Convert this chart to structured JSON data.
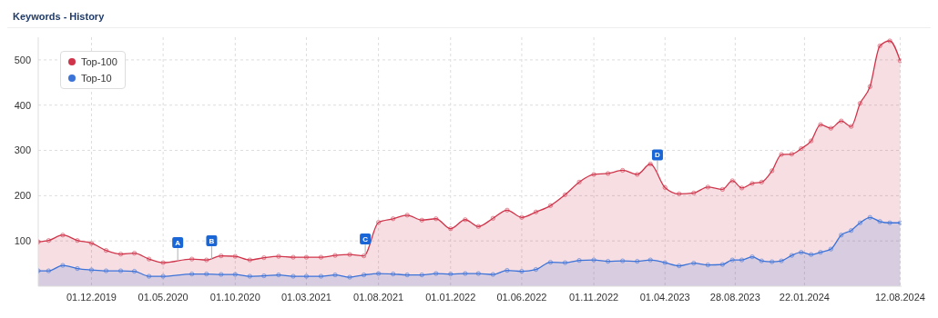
{
  "chart_data": {
    "type": "area",
    "title": "Keywords - History",
    "x": [
      "2019-08-10",
      "2019-09-01",
      "2019-10-01",
      "2019-11-01",
      "2019-12-01",
      "2020-01-01",
      "2020-02-01",
      "2020-03-01",
      "2020-04-01",
      "2020-05-01",
      "2020-07-01",
      "2020-08-01",
      "2020-09-01",
      "2020-10-01",
      "2020-11-01",
      "2020-12-01",
      "2021-01-01",
      "2021-02-01",
      "2021-03-01",
      "2021-04-01",
      "2021-05-01",
      "2021-06-01",
      "2021-07-01",
      "2021-08-01",
      "2021-09-01",
      "2021-10-01",
      "2021-11-01",
      "2021-12-01",
      "2022-01-01",
      "2022-02-01",
      "2022-03-01",
      "2022-04-01",
      "2022-05-01",
      "2022-06-01",
      "2022-07-01",
      "2022-08-01",
      "2022-09-01",
      "2022-10-01",
      "2022-11-01",
      "2022-12-01",
      "2023-01-01",
      "2023-02-01",
      "2023-03-01",
      "2023-04-01",
      "2023-05-01",
      "2023-06-01",
      "2023-07-01",
      "2023-08-01",
      "2023-08-22",
      "2023-09-11",
      "2023-10-03",
      "2023-10-23",
      "2023-11-14",
      "2023-12-04",
      "2023-12-26",
      "2024-01-15",
      "2024-02-05",
      "2024-02-25",
      "2024-03-18",
      "2024-04-09",
      "2024-04-30",
      "2024-05-19",
      "2024-06-09",
      "2024-06-30",
      "2024-07-21",
      "2024-08-12"
    ],
    "series": [
      {
        "name": "Top-100",
        "color": "#d0344a",
        "values": [
          98,
          101,
          113,
          101,
          95,
          79,
          71,
          73,
          60,
          52,
          60,
          58,
          67,
          66,
          58,
          63,
          66,
          64,
          64,
          64,
          68,
          70,
          67,
          141,
          149,
          157,
          146,
          149,
          127,
          147,
          132,
          150,
          168,
          152,
          164,
          178,
          202,
          230,
          247,
          249,
          256,
          247,
          270,
          218,
          204,
          206,
          219,
          214,
          233,
          217,
          227,
          230,
          255,
          291,
          292,
          304,
          321,
          357,
          349,
          365,
          353,
          404,
          441,
          531,
          542,
          498
        ]
      },
      {
        "name": "Top-10",
        "color": "#3b73d9",
        "values": [
          34,
          34,
          46,
          39,
          36,
          34,
          34,
          33,
          22,
          22,
          27,
          27,
          26,
          26,
          22,
          23,
          25,
          22,
          22,
          22,
          25,
          20,
          25,
          28,
          27,
          25,
          25,
          28,
          27,
          28,
          28,
          26,
          35,
          33,
          37,
          53,
          52,
          57,
          58,
          55,
          56,
          55,
          58,
          52,
          45,
          51,
          47,
          48,
          58,
          58,
          65,
          56,
          54,
          56,
          68,
          75,
          70,
          75,
          82,
          113,
          123,
          140,
          152,
          143,
          140,
          140
        ]
      }
    ],
    "xlim": [
      "2019-08-10",
      "2024-08-15"
    ],
    "xticks": [
      {
        "value": "2019-12-01",
        "label": "01.12.2019"
      },
      {
        "value": "2020-05-01",
        "label": "01.05.2020"
      },
      {
        "value": "2020-10-01",
        "label": "01.10.2020"
      },
      {
        "value": "2021-03-01",
        "label": "01.03.2021"
      },
      {
        "value": "2021-08-01",
        "label": "01.08.2021"
      },
      {
        "value": "2022-01-01",
        "label": "01.01.2022"
      },
      {
        "value": "2022-06-01",
        "label": "01.06.2022"
      },
      {
        "value": "2022-11-01",
        "label": "01.11.2022"
      },
      {
        "value": "2023-04-01",
        "label": "01.04.2023"
      },
      {
        "value": "2023-08-28",
        "label": "28.08.2023"
      },
      {
        "value": "2024-01-22",
        "label": "22.01.2024"
      },
      {
        "value": "2024-08-12",
        "label": "12.08.2024"
      }
    ],
    "ylim": [
      0,
      550
    ],
    "yticks": [
      100,
      200,
      300,
      400,
      500
    ],
    "grid": true,
    "legend": "top left",
    "marker": "circle",
    "annotations": [
      {
        "text": "A",
        "x": "2020-06-01",
        "y": 56
      },
      {
        "text": "B",
        "x": "2020-08-12",
        "y": 60
      },
      {
        "text": "C",
        "x": "2021-07-04",
        "y": 64
      },
      {
        "text": "D",
        "x": "2023-03-16",
        "y": 250
      }
    ]
  }
}
